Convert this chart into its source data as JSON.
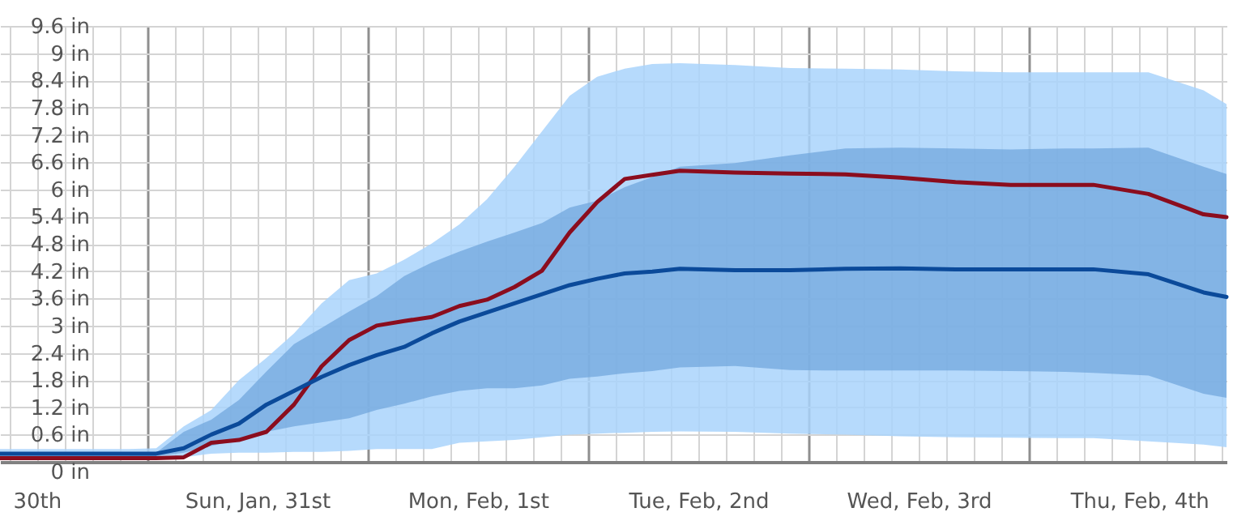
{
  "chart_data": {
    "type": "line",
    "x": [
      "--01-30T08:00",
      "--01-30T16:00",
      "--01-30T22:00",
      "--01-31T01:00",
      "--01-31T04:00",
      "--01-31T07:00",
      "--01-31T10:00",
      "--01-31T13:00",
      "--01-31T16:00",
      "--01-31T19:00",
      "--01-31T22:00",
      "--02-01T01:00",
      "--02-01T04:00",
      "--02-01T07:00",
      "--02-01T10:00",
      "--02-01T13:00",
      "--02-01T16:00",
      "--02-01T19:00",
      "--02-01T22:00",
      "--02-02T01:00",
      "--02-02T04:00",
      "--02-02T07:00",
      "--02-02T10:00",
      "--02-02T16:00",
      "--02-02T22:00",
      "--02-03T04:00",
      "--02-03T10:00",
      "--02-03T16:00",
      "--02-03T22:00",
      "--02-04T04:00",
      "--02-04T07:00",
      "--02-04T13:00",
      "--02-04T19:00",
      "--02-04T21:30"
    ],
    "series": [
      {
        "color": "#8b0d1e",
        "values": [
          0.08,
          0.08,
          0.08,
          0.08,
          0.1,
          0.42,
          0.48,
          0.66,
          1.26,
          2.1,
          2.68,
          3.0,
          3.1,
          3.19,
          3.43,
          3.57,
          3.85,
          4.21,
          5.05,
          5.72,
          6.23,
          6.32,
          6.41,
          6.37,
          6.35,
          6.33,
          6.26,
          6.16,
          6.1,
          6.1,
          6.1,
          5.9,
          5.45,
          5.39
        ],
        "lower": [
          0.06,
          0.06,
          0.06,
          0.06,
          0.1,
          0.18,
          0.2,
          0.2,
          0.22,
          0.22,
          0.24,
          0.28,
          0.28,
          0.28,
          0.42,
          0.45,
          0.48,
          0.54,
          0.6,
          0.62,
          0.64,
          0.66,
          0.67,
          0.66,
          0.62,
          0.6,
          0.56,
          0.54,
          0.53,
          0.52,
          0.52,
          0.45,
          0.38,
          0.32
        ],
        "upper": [
          0.28,
          0.28,
          0.28,
          0.3,
          0.78,
          1.14,
          1.8,
          2.29,
          2.83,
          3.49,
          4.0,
          4.15,
          4.45,
          4.81,
          5.23,
          5.78,
          6.5,
          7.28,
          8.06,
          8.48,
          8.66,
          8.76,
          8.78,
          8.74,
          8.67,
          8.66,
          8.64,
          8.6,
          8.58,
          8.58,
          8.58,
          8.58,
          8.18,
          7.88
        ]
      },
      {
        "color": "#0b4a9a",
        "values": [
          0.18,
          0.18,
          0.18,
          0.18,
          0.3,
          0.6,
          0.84,
          1.26,
          1.56,
          1.87,
          2.13,
          2.35,
          2.53,
          2.83,
          3.09,
          3.29,
          3.49,
          3.69,
          3.89,
          4.03,
          4.15,
          4.19,
          4.25,
          4.22,
          4.22,
          4.25,
          4.26,
          4.24,
          4.24,
          4.24,
          4.24,
          4.13,
          3.73,
          3.63
        ],
        "lower": [
          0.1,
          0.1,
          0.1,
          0.12,
          0.2,
          0.35,
          0.48,
          0.66,
          0.78,
          0.87,
          0.96,
          1.14,
          1.28,
          1.44,
          1.56,
          1.62,
          1.62,
          1.68,
          1.83,
          1.88,
          1.95,
          2.0,
          2.08,
          2.11,
          2.02,
          2.01,
          2.01,
          2.01,
          2.0,
          1.98,
          1.96,
          1.9,
          1.5,
          1.41
        ],
        "upper": [
          0.14,
          0.14,
          0.14,
          0.2,
          0.66,
          0.93,
          1.36,
          1.99,
          2.59,
          2.95,
          3.31,
          3.65,
          4.09,
          4.39,
          4.63,
          4.85,
          5.05,
          5.26,
          5.6,
          5.75,
          6.05,
          6.27,
          6.5,
          6.58,
          6.75,
          6.9,
          6.92,
          6.9,
          6.88,
          6.9,
          6.9,
          6.92,
          6.5,
          6.34
        ]
      }
    ],
    "xlim": [
      "--01-30T08:00",
      "--02-04T21:30"
    ],
    "xticks": [
      {
        "value": "--01-30T09:00",
        "label": null
      },
      {
        "value": "--01-30T12:00",
        "label": "30th"
      },
      {
        "value": "--01-30T15:00",
        "label": null
      },
      {
        "value": "--01-30T18:00",
        "label": null
      },
      {
        "value": "--01-30T21:00",
        "label": null
      },
      {
        "value": "--01-31T00:00",
        "label": null
      },
      {
        "value": "--01-31T03:00",
        "label": null
      },
      {
        "value": "--01-31T06:00",
        "label": null
      },
      {
        "value": "--01-31T09:00",
        "label": null
      },
      {
        "value": "--01-31T12:00",
        "label": "Sun, Jan, 31st"
      },
      {
        "value": "--01-31T15:00",
        "label": null
      },
      {
        "value": "--01-31T18:00",
        "label": null
      },
      {
        "value": "--01-31T21:00",
        "label": null
      },
      {
        "value": "--02-01T00:00",
        "label": null
      },
      {
        "value": "--02-01T03:00",
        "label": null
      },
      {
        "value": "--02-01T06:00",
        "label": null
      },
      {
        "value": "--02-01T09:00",
        "label": null
      },
      {
        "value": "--02-01T12:00",
        "label": "Mon, Feb, 1st"
      },
      {
        "value": "--02-01T15:00",
        "label": null
      },
      {
        "value": "--02-01T18:00",
        "label": null
      },
      {
        "value": "--02-01T21:00",
        "label": null
      },
      {
        "value": "--02-02T00:00",
        "label": null
      },
      {
        "value": "--02-02T03:00",
        "label": null
      },
      {
        "value": "--02-02T06:00",
        "label": null
      },
      {
        "value": "--02-02T09:00",
        "label": null
      },
      {
        "value": "--02-02T12:00",
        "label": "Tue, Feb, 2nd"
      },
      {
        "value": "--02-02T15:00",
        "label": null
      },
      {
        "value": "--02-02T18:00",
        "label": null
      },
      {
        "value": "--02-02T21:00",
        "label": null
      },
      {
        "value": "--02-03T00:00",
        "label": null
      },
      {
        "value": "--02-03T03:00",
        "label": null
      },
      {
        "value": "--02-03T06:00",
        "label": null
      },
      {
        "value": "--02-03T09:00",
        "label": null
      },
      {
        "value": "--02-03T12:00",
        "label": "Wed, Feb, 3rd"
      },
      {
        "value": "--02-03T15:00",
        "label": null
      },
      {
        "value": "--02-03T18:00",
        "label": null
      },
      {
        "value": "--02-03T21:00",
        "label": null
      },
      {
        "value": "--02-04T00:00",
        "label": null
      },
      {
        "value": "--02-04T03:00",
        "label": null
      },
      {
        "value": "--02-04T06:00",
        "label": null
      },
      {
        "value": "--02-04T09:00",
        "label": null
      },
      {
        "value": "--02-04T12:00",
        "label": "Thu, Feb, 4th"
      },
      {
        "value": "--02-04T15:00",
        "label": null
      },
      {
        "value": "--02-04T18:00",
        "label": null
      },
      {
        "value": "--02-04T21:00",
        "label": null
      }
    ],
    "ylim": [
      0,
      9.6
    ],
    "yticks": [
      {
        "value": 0,
        "label": "0 in"
      },
      {
        "value": 0.6,
        "label": "0.6 in"
      },
      {
        "value": 1.2,
        "label": "1.2 in"
      },
      {
        "value": 1.8,
        "label": "1.8 in"
      },
      {
        "value": 2.4,
        "label": "2.4 in"
      },
      {
        "value": 3,
        "label": "3 in"
      },
      {
        "value": 3.6,
        "label": "3.6 in"
      },
      {
        "value": 4.2,
        "label": "4.2 in"
      },
      {
        "value": 4.8,
        "label": "4.8 in"
      },
      {
        "value": 5.4,
        "label": "5.4 in"
      },
      {
        "value": 6,
        "label": "6 in"
      },
      {
        "value": 6.6,
        "label": "6.6 in"
      },
      {
        "value": 7.2,
        "label": "7.2 in"
      },
      {
        "value": 7.8,
        "label": "7.8 in"
      },
      {
        "value": 8.4,
        "label": "8.4 in"
      },
      {
        "value": 9,
        "label": "9 in"
      },
      {
        "value": 9.6,
        "label": "9.6 in"
      }
    ],
    "grid": true,
    "line_style": "solid",
    "marker": "none"
  }
}
